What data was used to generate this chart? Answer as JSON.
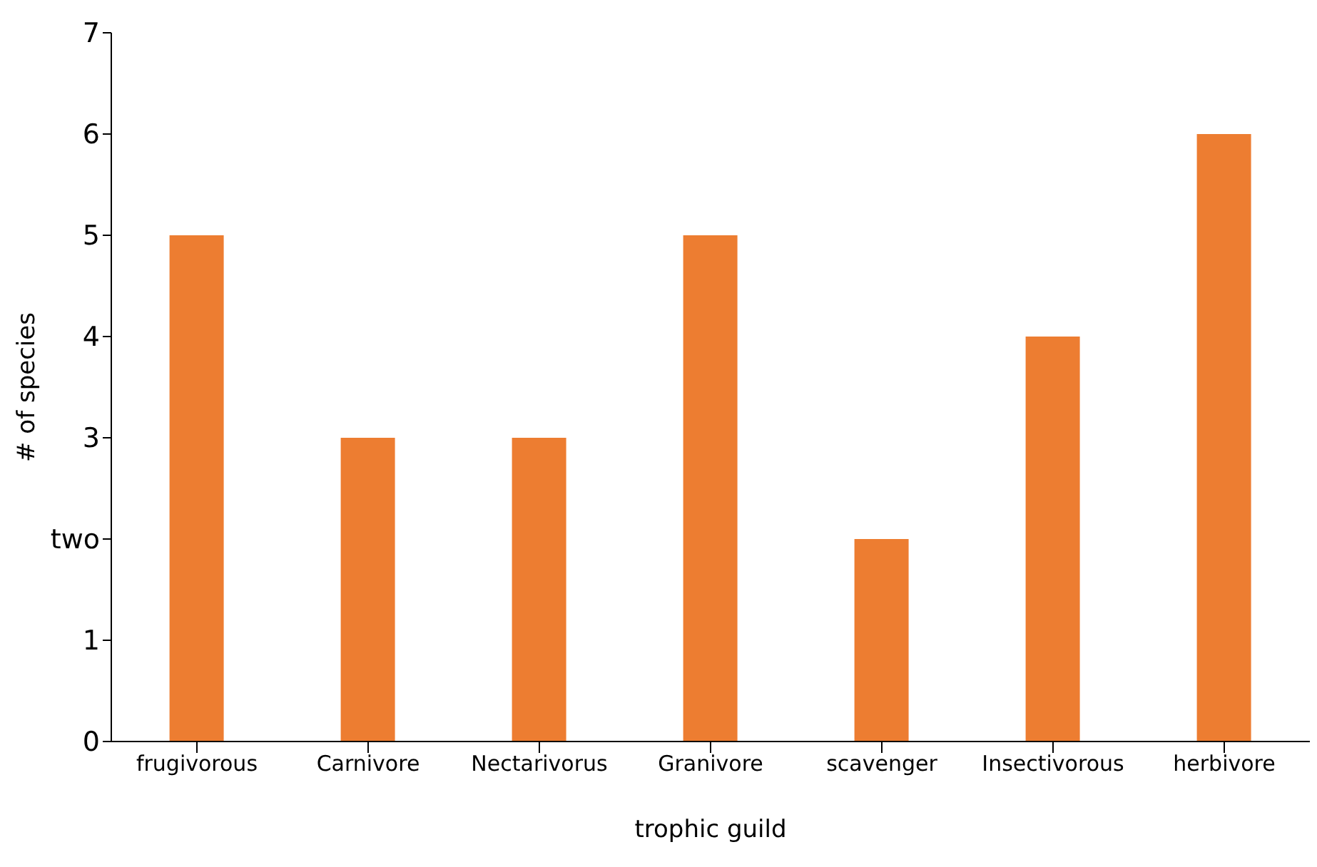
{
  "chart_data": {
    "type": "bar",
    "xlabel": "trophic guild",
    "ylabel": "# of species",
    "categories": [
      "frugivorous",
      "Carnivore",
      "Nectarivorus",
      "Granivore",
      "scavenger",
      "Insectivorous",
      "herbivore"
    ],
    "values": [
      5,
      3,
      3,
      5,
      2,
      4,
      6
    ],
    "color": "#ed7d31",
    "ylim": [
      0,
      7
    ],
    "yticks": [
      0,
      1,
      {
        "value": 2,
        "label": "two"
      },
      3,
      4,
      5,
      6,
      7
    ]
  }
}
